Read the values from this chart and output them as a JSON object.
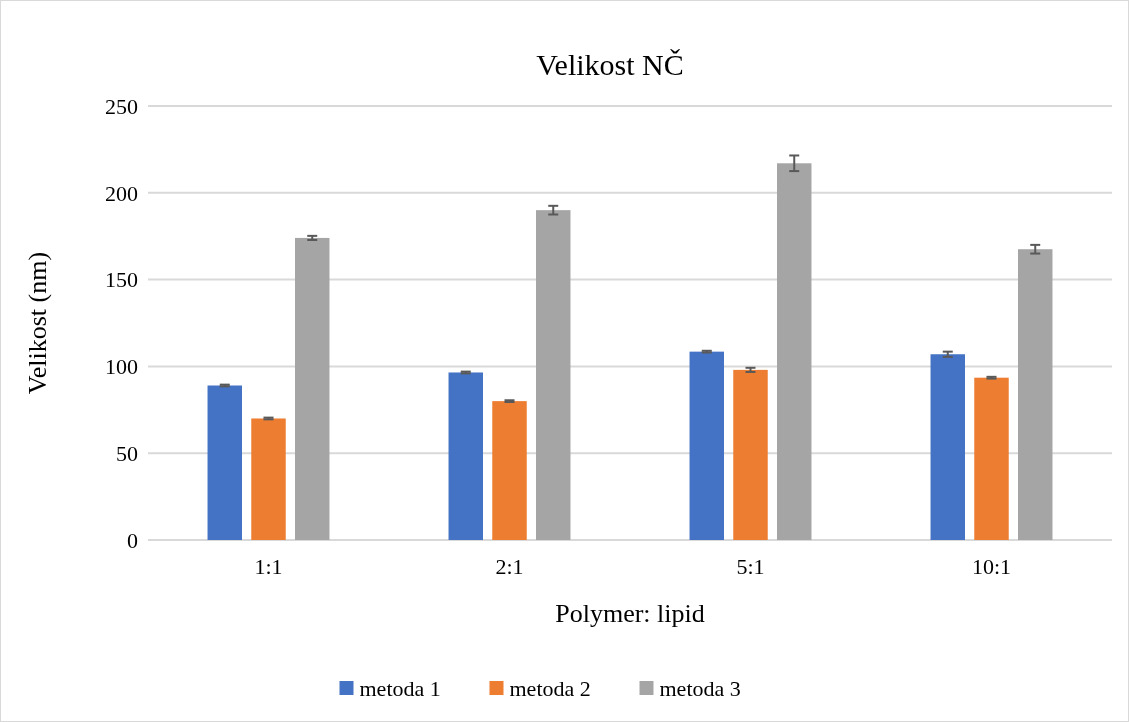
{
  "chart_data": {
    "type": "bar",
    "title": "Velikost NČ",
    "xlabel": "Polymer: lipid",
    "ylabel": "Velikost (nm)",
    "categories": [
      "1:1",
      "2:1",
      "5:1",
      "10:1"
    ],
    "series": [
      {
        "name": "metoda 1",
        "color": "#4472c4",
        "values": [
          89,
          96.5,
          108.5,
          107
        ],
        "errors": [
          0.5,
          0.5,
          0.5,
          1.5
        ]
      },
      {
        "name": "metoda 2",
        "color": "#ed7d31",
        "values": [
          70,
          80,
          98,
          93.5
        ],
        "errors": [
          0.5,
          0.5,
          1.2,
          0.5
        ]
      },
      {
        "name": "metoda 3",
        "color": "#a5a5a5",
        "values": [
          174,
          190,
          217,
          167.5
        ],
        "errors": [
          1.2,
          2.5,
          4.5,
          2.5
        ]
      }
    ],
    "ylim": [
      0,
      250
    ],
    "yticks": [
      0,
      50,
      100,
      150,
      200,
      250
    ],
    "grid": "y",
    "legend": "bottom"
  }
}
